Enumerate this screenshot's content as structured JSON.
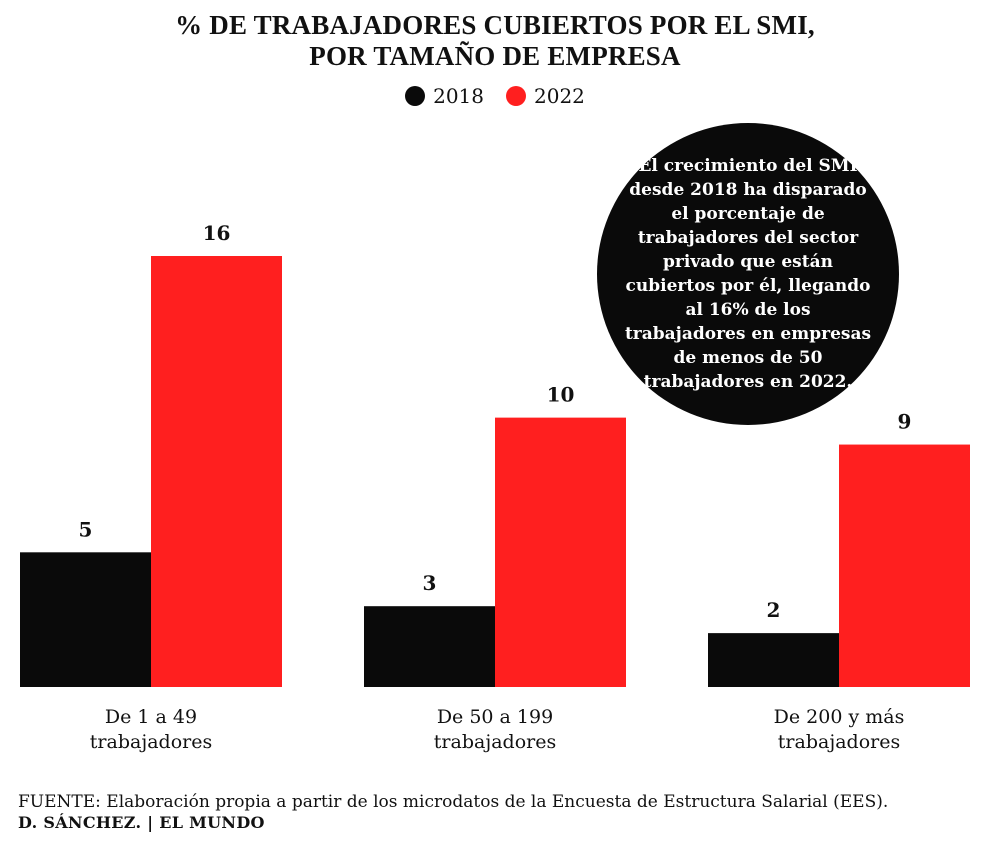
{
  "title_line1": "% DE TRABAJADORES CUBIERTOS POR EL SMI,",
  "title_line2": "POR TAMAÑO DE EMPRESA",
  "annotation": "El crecimiento del SMI desde 2018 ha disparado el porcentaje de trabajadores del sector privado que están cubiertos por él, llegando al 16% de los trabajadores en empresas de menos de 50 trabajadores en 2022.",
  "source": "FUENTE: Elaboración propia a partir de los microdatos de la Encuesta de Estructura Salarial (EES).",
  "credit": "D. SÁNCHEZ. | EL MUNDO",
  "colors": {
    "series_2018": "#0a0a0a",
    "series_2022": "#ff1f1f",
    "annotation_bg": "#0a0a0a"
  },
  "chart_data": {
    "type": "bar",
    "title": "% DE TRABAJADORES CUBIERTOS POR EL SMI, POR TAMAÑO DE EMPRESA",
    "categories": [
      "De 1 a 49 trabajadores",
      "De 50 a 199 trabajadores",
      "De 200 y más trabajadores"
    ],
    "category_lines": [
      [
        "De 1 a 49",
        "trabajadores"
      ],
      [
        "De 50 a 199",
        "trabajadores"
      ],
      [
        "De 200 y más",
        "trabajadores"
      ]
    ],
    "series": [
      {
        "name": "2018",
        "values": [
          5,
          3,
          2
        ]
      },
      {
        "name": "2022",
        "values": [
          16,
          10,
          9
        ]
      }
    ],
    "data_labels": true,
    "grid": false,
    "legend": "top-center",
    "xlabel": "",
    "ylabel": "",
    "ylim": [
      0,
      16
    ]
  }
}
